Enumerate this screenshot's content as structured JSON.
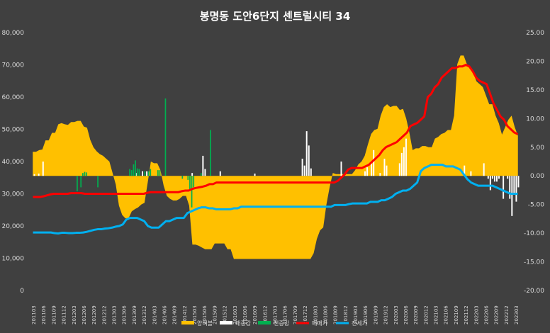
{
  "chart_data": {
    "type": "combo",
    "title": "봉명동 도안6단지 센트럴시티 34",
    "y_left": {
      "min": 0,
      "max": 80000,
      "step": 10000,
      "tick_labels": [
        "0",
        "10,000",
        "20,000",
        "30,000",
        "40,000",
        "50,000",
        "60,000",
        "70,000",
        "80,000"
      ]
    },
    "y_right": {
      "min": -20,
      "max": 25,
      "step": 5,
      "tick_labels": [
        "-20.00",
        "-15.00",
        "-10.00",
        "-5.00",
        "0.00",
        "5.00",
        "10.00",
        "15.00",
        "20.00",
        "25.00"
      ]
    },
    "x_tick_labels": [
      "201103",
      "201106",
      "201109",
      "201112",
      "201203",
      "201206",
      "201209",
      "201212",
      "201303",
      "201306",
      "201309",
      "201312",
      "201403",
      "201406",
      "201409",
      "201412",
      "201503",
      "201506",
      "201509",
      "201512",
      "201603",
      "201606",
      "201609",
      "201612",
      "201703",
      "201706",
      "201709",
      "201712",
      "201803",
      "201806",
      "201809",
      "201812",
      "201903",
      "201906",
      "201909",
      "201912",
      "202003",
      "202006",
      "202009",
      "202012",
      "202103",
      "202106",
      "202109",
      "202112",
      "202203",
      "202206",
      "202209",
      "202212",
      "202303"
    ],
    "legend": [
      "양버블",
      "매증감",
      "전증감",
      "매매가",
      "전세가"
    ],
    "colors": {
      "bubble": "#ffc000",
      "sale_change": "#ffffff",
      "jeonse_change": "#00b050",
      "sale_price": "#ff0000",
      "jeonse_price": "#00b0f0"
    },
    "series": [
      {
        "name": "양버블",
        "axis": "right",
        "style": "area",
        "values": [
          4.2,
          4.2,
          4.5,
          4.6,
          6.2,
          6.2,
          7.5,
          7.5,
          9,
          9.2,
          9,
          8.9,
          9.4,
          9.4,
          9.6,
          9.6,
          8.6,
          8.4,
          6.3,
          5,
          4.3,
          3.8,
          3.5,
          3,
          2.5,
          0.5,
          -1.5,
          -5.2,
          -6.8,
          -7.4,
          -7.4,
          -6.2,
          -5.8,
          -5.5,
          -5,
          -4.7,
          -1.2,
          2.5,
          2.2,
          2.2,
          1,
          -1.7,
          -3.5,
          -4,
          -4.3,
          -4.3,
          -4,
          -3.5,
          -3.5,
          -5.2,
          -12,
          -12,
          -12.2,
          -12.5,
          -12.8,
          -12.8,
          -12.8,
          -11.8,
          -11.8,
          -11.8,
          -11.8,
          -12.8,
          -12.8,
          -14.5,
          -14.5,
          -14.5,
          -14.5,
          -14.5,
          -14.5,
          -14.5,
          -14.5,
          -14.5,
          -14.5,
          -14.5,
          -14.5,
          -14.5,
          -14.5,
          -14.5,
          -14.5,
          -14.5,
          -14.5,
          -14.5,
          -14.5,
          -14.5,
          -14.5,
          -14.5,
          -14.5,
          -14.5,
          -13.5,
          -11,
          -9.5,
          -9,
          -5,
          -2,
          0.5,
          0.3,
          0.3,
          0.3,
          0.3,
          0.3,
          0.3,
          1,
          2,
          2.5,
          3.5,
          5.5,
          7.3,
          8,
          8.2,
          10.5,
          12,
          12.5,
          12,
          12.2,
          12.2,
          11.5,
          11.7,
          10,
          7.5,
          4.5,
          4.8,
          4.8,
          5.2,
          5.2,
          5,
          5,
          6.5,
          6.8,
          7.3,
          7.5,
          8,
          8,
          10.5,
          19.5,
          21,
          21,
          19.5,
          19,
          18,
          16.5,
          16,
          15.5,
          14,
          12.5,
          12.5,
          10.5,
          9.2,
          7.2,
          8.5,
          9.8,
          10.5,
          8.5,
          7
        ]
      },
      {
        "name": "매증감",
        "axis": "right",
        "style": "bar",
        "values": [
          0,
          0.3,
          0,
          0.4,
          0,
          2.5,
          0,
          0,
          0,
          0,
          0,
          0,
          0,
          0,
          0,
          0,
          0,
          0,
          0,
          0,
          0,
          0,
          0,
          0,
          0,
          0,
          0,
          0,
          0,
          0,
          0,
          0,
          0,
          0,
          0,
          0,
          0,
          0,
          0,
          0,
          0,
          0,
          0,
          0,
          0,
          0,
          0,
          0,
          0.5,
          0,
          0,
          0.8,
          0,
          0.8,
          0,
          0,
          0,
          0,
          0,
          0,
          0,
          0,
          0,
          0,
          0,
          0,
          0,
          0,
          0,
          0,
          0,
          0,
          0,
          0,
          0.5,
          0,
          0,
          0,
          0,
          3.5,
          1.2,
          0,
          0,
          0,
          0,
          0,
          0,
          0.8,
          0,
          0,
          0,
          0,
          0,
          0,
          0,
          0,
          0,
          0,
          0,
          0,
          0,
          0,
          0,
          0.4,
          0,
          0,
          0,
          0,
          0,
          0,
          0,
          0,
          0,
          0,
          0,
          0,
          0,
          0,
          0,
          0,
          0,
          0,
          0,
          0,
          0,
          3,
          1.8,
          7.8,
          5.3,
          1.3,
          0,
          0,
          0,
          0,
          0,
          0,
          0,
          0,
          0,
          0,
          0,
          0,
          0,
          2.5,
          0,
          0,
          0,
          0,
          0,
          0,
          0,
          0,
          0,
          0,
          0.8,
          1.5,
          0,
          2.2,
          4.5,
          0,
          0,
          0.5,
          0,
          3,
          1.8,
          0,
          0,
          0,
          0,
          0,
          2.2,
          4,
          5,
          6.5,
          0,
          0,
          0,
          0,
          0,
          0,
          0,
          0,
          0,
          0,
          0,
          0,
          0,
          0,
          0,
          0,
          0,
          0,
          0,
          0,
          0,
          0,
          0,
          0,
          0,
          0,
          1.8,
          0,
          0,
          0.8,
          0,
          0,
          0,
          0,
          0,
          2.2,
          0,
          -0.5,
          -2.5,
          -0.5,
          -1,
          -1,
          -0.5,
          0,
          -4,
          0,
          -0.5,
          -4,
          -7,
          -3,
          -4.5,
          -2
        ]
      },
      {
        "name": "전증감",
        "axis": "right",
        "style": "bar",
        "values": [
          0,
          0,
          0,
          0,
          0,
          0,
          0,
          0,
          0,
          0,
          0,
          0,
          0,
          0,
          0,
          0,
          0,
          0,
          0,
          0,
          0,
          0,
          0,
          0,
          -2.7,
          0,
          -2,
          0.5,
          0.7,
          0.6,
          0,
          0,
          0,
          0,
          0,
          -2,
          0,
          0,
          0,
          0,
          0,
          0,
          0,
          0,
          0,
          0,
          0,
          0,
          0,
          0,
          0,
          0,
          1.2,
          1,
          2,
          2.7,
          1.3,
          1.2,
          0,
          0,
          0.8,
          0,
          0.8,
          1.2,
          0,
          0,
          0,
          1,
          1,
          0,
          0,
          13.5,
          0,
          0,
          0,
          0,
          0,
          0,
          0,
          0,
          -0.5,
          0,
          0,
          -0.7,
          -2.5,
          -5.5,
          -2,
          0,
          0,
          0,
          0.5,
          0,
          0,
          0,
          0,
          8,
          0,
          0,
          0,
          0,
          0,
          0,
          0,
          0,
          0,
          0,
          0,
          0,
          0,
          0,
          0,
          0,
          0,
          0,
          0,
          0,
          0,
          0,
          0,
          0,
          0,
          0,
          0,
          0,
          0,
          0,
          0,
          0,
          0,
          0,
          0,
          0,
          0,
          0,
          0,
          0,
          0,
          0,
          0,
          0,
          0,
          0,
          0,
          0,
          0,
          0,
          0,
          0,
          0,
          0,
          0,
          0,
          0,
          0,
          0,
          0,
          0,
          0,
          0,
          0,
          0,
          0,
          0,
          0,
          0,
          0,
          0,
          0,
          0,
          0,
          0,
          0,
          0,
          0,
          0,
          0,
          0,
          0,
          0,
          0,
          0,
          0,
          0,
          0,
          0,
          0,
          0,
          0,
          0,
          0,
          0,
          0,
          0,
          0,
          0,
          0,
          0,
          0,
          0,
          0,
          0,
          0,
          0,
          0,
          0,
          0,
          0,
          0,
          0,
          0,
          0,
          0,
          0,
          0,
          0,
          0,
          0,
          0,
          0,
          0,
          0,
          0,
          0,
          0,
          0,
          0,
          0,
          0,
          0,
          0,
          0,
          0,
          0,
          0,
          0,
          0,
          0,
          0,
          0,
          0,
          0,
          0,
          0,
          0,
          0,
          0,
          0,
          0,
          0,
          0,
          0,
          0,
          0,
          0,
          0,
          0,
          0,
          0,
          0,
          0
        ]
      },
      {
        "name": "매매가",
        "axis": "left",
        "style": "line",
        "values": [
          29000,
          29000,
          29000,
          29200,
          29500,
          29800,
          30000,
          30000,
          30000,
          30000,
          30000,
          30200,
          30200,
          30200,
          30200,
          30000,
          30000,
          30000,
          30000,
          30000,
          30000,
          30000,
          30000,
          30000,
          30000,
          30000,
          30000,
          30000,
          30000,
          30000,
          30000,
          30000,
          30000,
          30300,
          30500,
          30500,
          30500,
          30500,
          30500,
          30500,
          30500,
          30500,
          30500,
          30800,
          31000,
          31000,
          31500,
          31800,
          32000,
          32200,
          32500,
          33000,
          33000,
          33500,
          33500,
          33500,
          33500,
          33500,
          33500,
          33500,
          33500,
          33500,
          33500,
          33500,
          33500,
          33500,
          33500,
          33500,
          33500,
          33500,
          33500,
          33500,
          33500,
          33500,
          33500,
          33500,
          33500,
          33500,
          33500,
          33500,
          33500,
          33500,
          33500,
          33500,
          33500,
          33500,
          33500,
          33500,
          34000,
          35000,
          36000,
          37500,
          38000,
          38000,
          38000,
          38000,
          38500,
          39000,
          40000,
          41000,
          42000,
          43500,
          44500,
          45000,
          45500,
          46000,
          47000,
          48000,
          49000,
          51000,
          51500,
          52000,
          53000,
          54000,
          60000,
          61000,
          63000,
          64000,
          66000,
          67000,
          68000,
          69000,
          69000,
          69500,
          69500,
          70000,
          69500,
          68000,
          66000,
          65000,
          64500,
          64000,
          61000,
          58000,
          56000,
          54000,
          53000,
          51000,
          50000,
          49000,
          48500
        ]
      },
      {
        "name": "전세가",
        "axis": "left",
        "style": "line",
        "values": [
          18000,
          18000,
          18000,
          18000,
          18000,
          18000,
          17800,
          17700,
          17900,
          17900,
          17800,
          17800,
          17900,
          17900,
          18000,
          18200,
          18500,
          18800,
          19000,
          19000,
          19200,
          19300,
          19500,
          19800,
          20000,
          20500,
          22000,
          22500,
          22500,
          22500,
          22000,
          21500,
          20000,
          19500,
          19500,
          19500,
          20500,
          21500,
          21500,
          22000,
          22500,
          22500,
          22500,
          24000,
          24500,
          25000,
          25500,
          25800,
          25800,
          25500,
          25500,
          25200,
          25200,
          25200,
          25200,
          25200,
          25500,
          25500,
          26000,
          26000,
          26000,
          26000,
          26000,
          26000,
          26000,
          26000,
          26000,
          26000,
          26000,
          26000,
          26000,
          26000,
          26000,
          26000,
          26000,
          26000,
          26000,
          26000,
          26000,
          26000,
          26000,
          26000,
          26000,
          26000,
          26500,
          26500,
          26500,
          26500,
          26800,
          27000,
          27000,
          27000,
          27000,
          27000,
          27500,
          27500,
          27500,
          28000,
          28000,
          28500,
          29000,
          30000,
          30500,
          31000,
          31000,
          31500,
          32500,
          33500,
          37000,
          38000,
          38500,
          39000,
          39000,
          39000,
          39000,
          38500,
          38500,
          38500,
          38000,
          37500,
          36000,
          34500,
          33500,
          33000,
          32500,
          32500,
          32500,
          32500,
          32500,
          32000,
          31500,
          31000,
          30500,
          30000,
          30000,
          30000
        ]
      }
    ]
  }
}
